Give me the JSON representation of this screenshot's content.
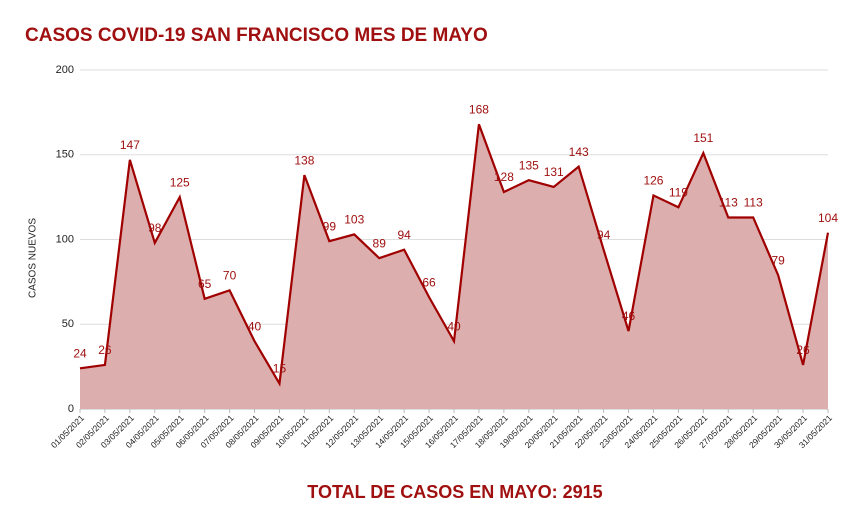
{
  "chart_data": {
    "type": "area",
    "title": "CASOS COVID-19 SAN FRANCISCO MES DE MAYO",
    "ylabel": "CASOS NUEVOS",
    "footer": "TOTAL DE CASOS EN MAYO: 2915",
    "categories": [
      "01/05/2021",
      "02/05/2021",
      "03/05/2021",
      "04/05/2021",
      "05/05/2021",
      "06/05/2021",
      "07/05/2021",
      "08/05/2021",
      "09/05/2021",
      "10/05/2021",
      "11/05/2021",
      "12/05/2021",
      "13/05/2021",
      "14/05/2021",
      "15/05/2021",
      "16/05/2021",
      "17/05/2021",
      "18/05/2021",
      "19/05/2021",
      "20/05/2021",
      "21/05/2021",
      "22/05/2021",
      "23/05/2021",
      "24/05/2021",
      "25/05/2021",
      "26/05/2021",
      "27/05/2021",
      "28/05/2021",
      "29/05/2021",
      "30/05/2021",
      "31/05/2021"
    ],
    "values": [
      24,
      26,
      147,
      98,
      125,
      65,
      70,
      40,
      15,
      138,
      99,
      103,
      89,
      94,
      66,
      40,
      168,
      128,
      135,
      131,
      143,
      94,
      46,
      126,
      119,
      151,
      113,
      113,
      79,
      26,
      104
    ],
    "line_color": "#a00000",
    "fill_color": "#dcaeae",
    "ylim": [
      0,
      200
    ],
    "yticks": [
      0,
      50,
      100,
      150,
      200
    ],
    "grid": true
  }
}
